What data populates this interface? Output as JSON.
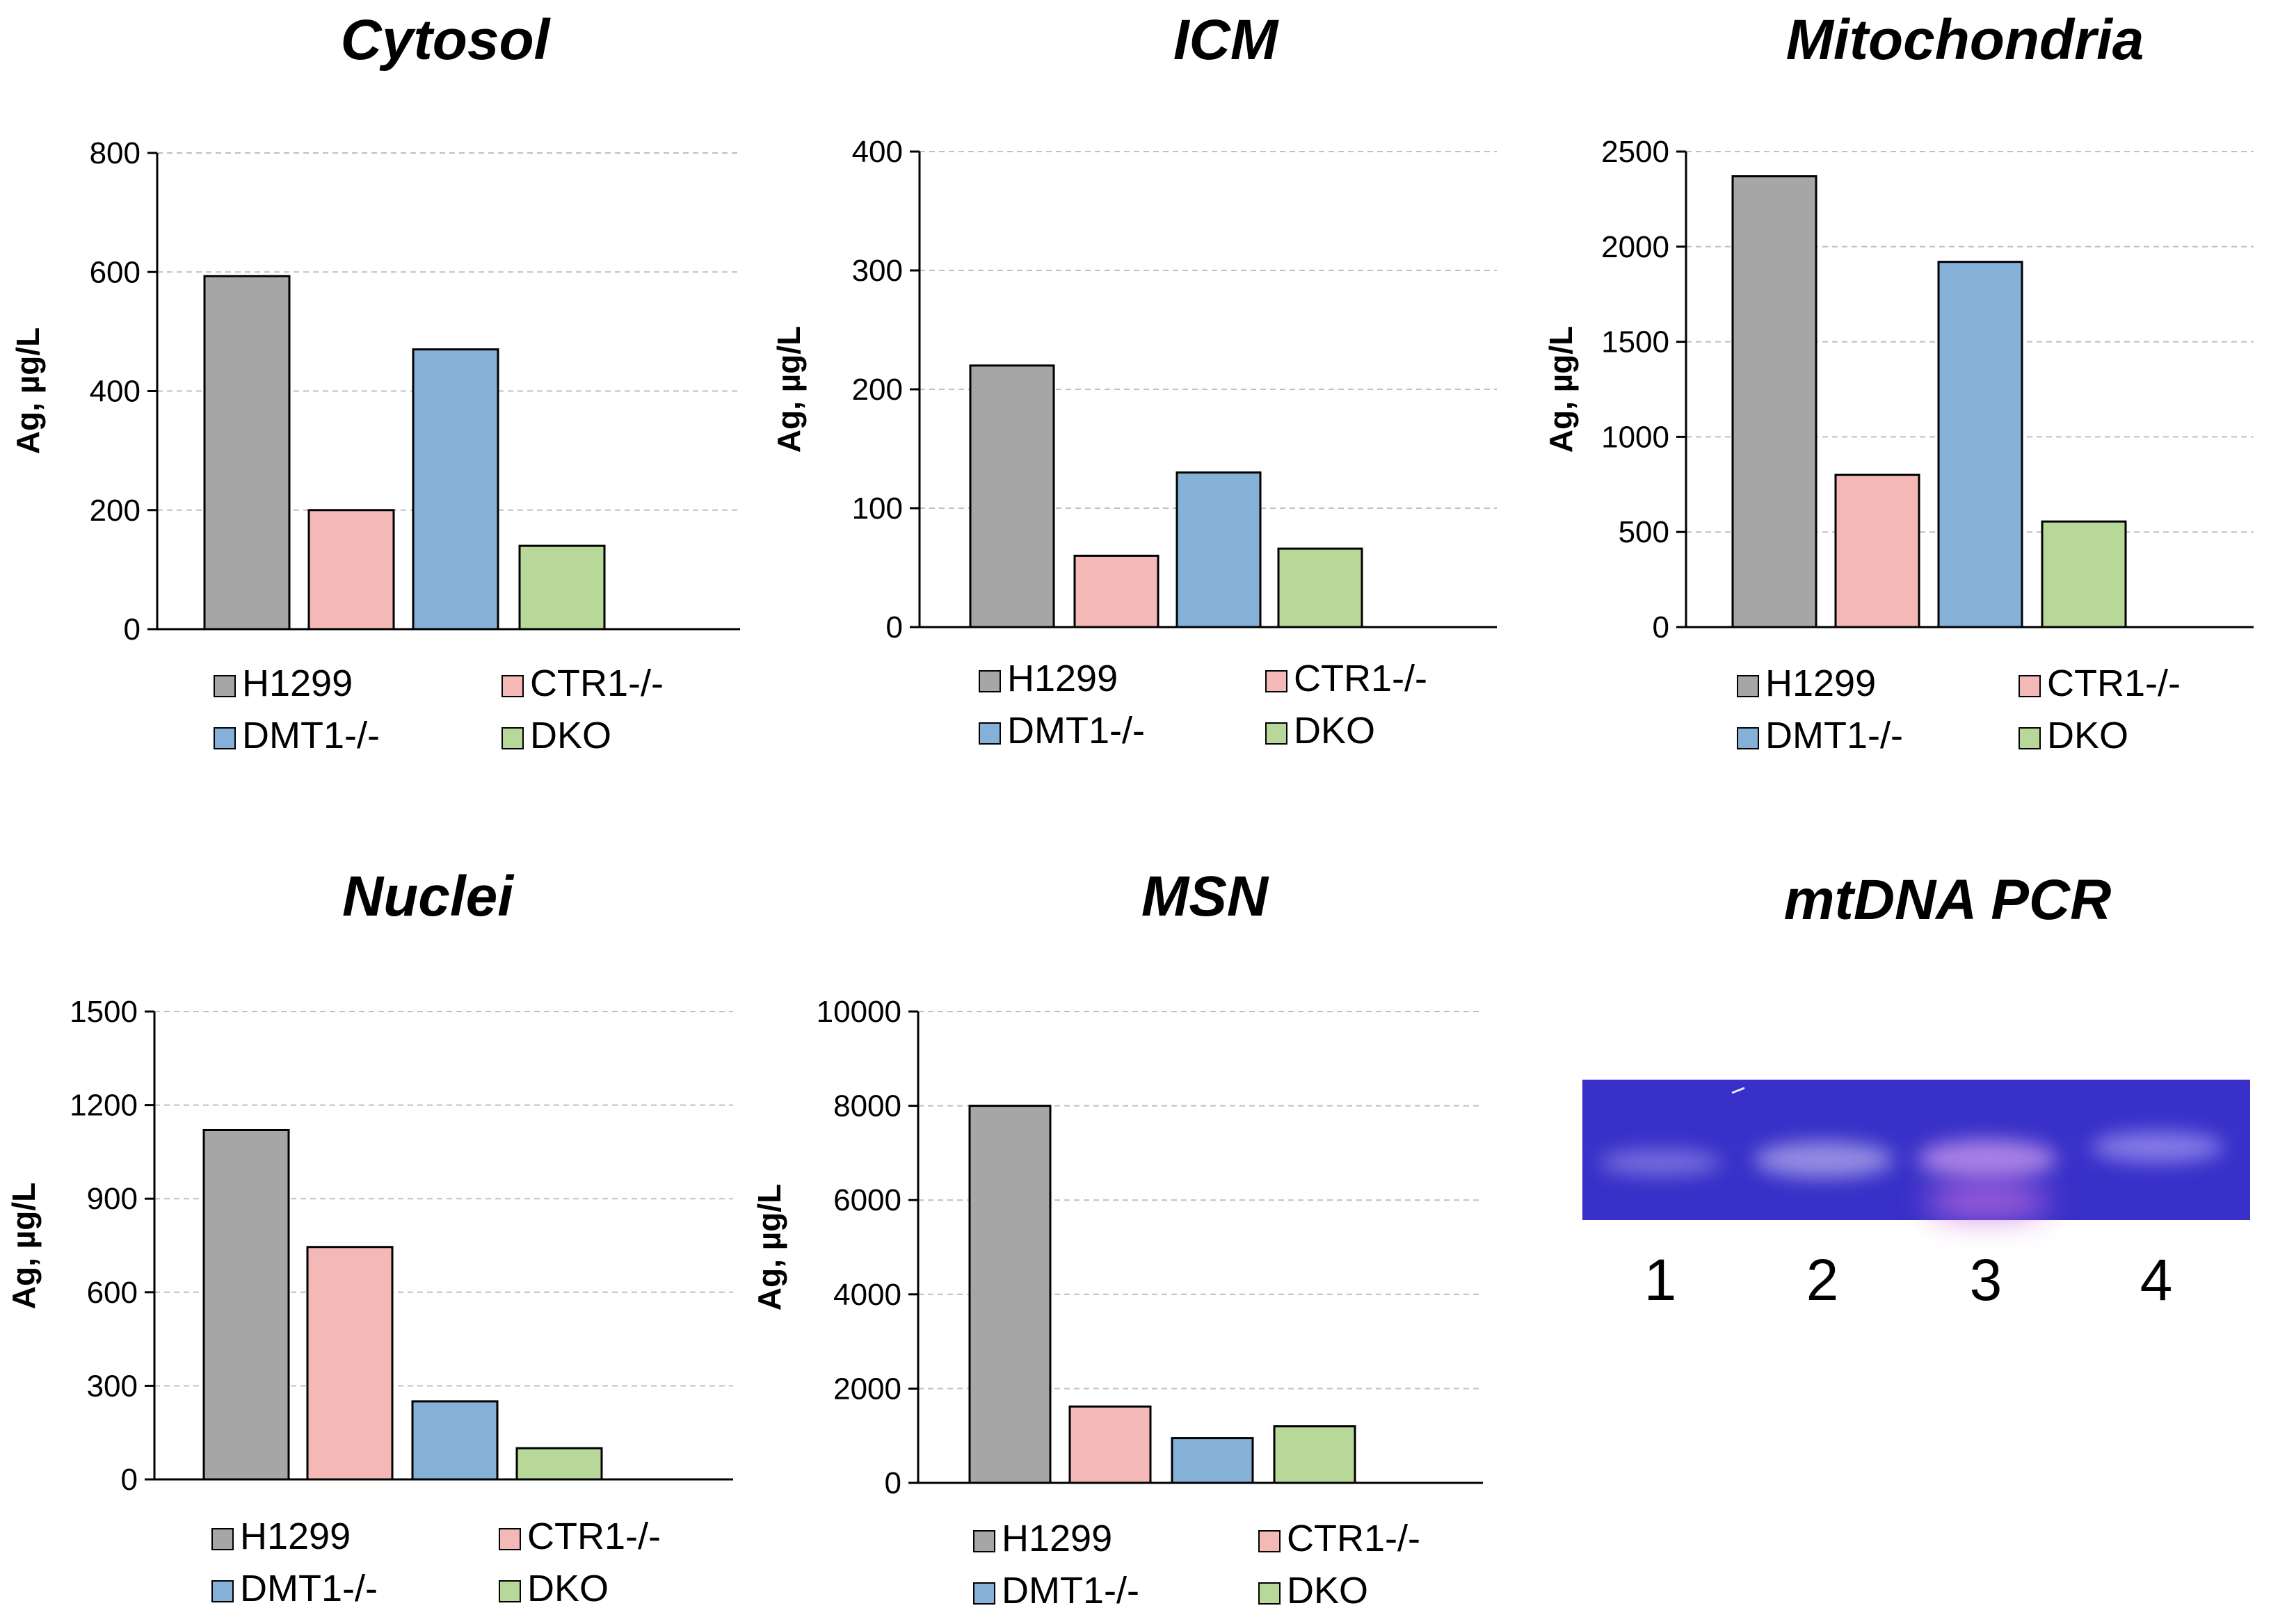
{
  "colors": {
    "H1299": "#a6a6a6",
    "CTR1-/-": "#f4b8b7",
    "DMT1-/-": "#85b1d8",
    "DKO": "#b8d89a",
    "axis": "#000000",
    "grid": "#bfbfbf",
    "gel_bg": "#3830c8",
    "gel_band": "#8f86e6",
    "gel_smear": "#c86fe0"
  },
  "chart_data": [
    {
      "type": "bar",
      "title": "Cytosol",
      "ylabel": "Ag, µg/L",
      "ylim": [
        0,
        800
      ],
      "yticks": [
        "0",
        "200",
        "400",
        "600",
        "800"
      ],
      "categories": [
        "H1299",
        "CTR1-/-",
        "DMT1-/-",
        "DKO"
      ],
      "values": [
        593,
        200,
        470,
        140
      ],
      "legend": [
        "H1299",
        "CTR1-/-",
        "DMT1-/-",
        "DKO"
      ],
      "grid": true
    },
    {
      "type": "bar",
      "title": "ICM",
      "ylabel": "Ag, µg/L",
      "ylim": [
        0,
        400
      ],
      "yticks": [
        "0",
        "100",
        "200",
        "300",
        "400"
      ],
      "categories": [
        "H1299",
        "CTR1-/-",
        "DMT1-/-",
        "DKO"
      ],
      "values": [
        220,
        60,
        130,
        66
      ],
      "legend": [
        "H1299",
        "CTR1-/-",
        "DMT1-/-",
        "DKO"
      ],
      "grid": true
    },
    {
      "type": "bar",
      "title": "Mitochondria",
      "ylabel": "Ag, µg/L",
      "ylim": [
        0,
        2500
      ],
      "yticks": [
        "0",
        "500",
        "1000",
        "1500",
        "2000",
        "2500"
      ],
      "categories": [
        "H1299",
        "CTR1-/-",
        "DMT1-/-",
        "DKO"
      ],
      "values": [
        2370,
        800,
        1920,
        555
      ],
      "legend": [
        "H1299",
        "CTR1-/-",
        "DMT1-/-",
        "DKO"
      ],
      "grid": true
    },
    {
      "type": "bar",
      "title": "Nuclei",
      "ylabel": "Ag, µg/L",
      "ylim": [
        0,
        1500
      ],
      "yticks": [
        "0",
        "300",
        "600",
        "900",
        "1200",
        "1500"
      ],
      "categories": [
        "H1299",
        "CTR1-/-",
        "DMT1-/-",
        "DKO"
      ],
      "values": [
        1120,
        745,
        250,
        100
      ],
      "legend": [
        "H1299",
        "CTR1-/-",
        "DMT1-/-",
        "DKO"
      ],
      "grid": true
    },
    {
      "type": "bar",
      "title": "MSN",
      "ylabel": "Ag, µg/L",
      "ylim": [
        0,
        10000
      ],
      "yticks": [
        "0",
        "2000",
        "4000",
        "6000",
        "8000",
        "10000"
      ],
      "categories": [
        "H1299",
        "CTR1-/-",
        "DMT1-/-",
        "DKO"
      ],
      "values": [
        8000,
        1620,
        950,
        1200
      ],
      "legend": [
        "H1299",
        "CTR1-/-",
        "DMT1-/-",
        "DKO"
      ],
      "grid": true
    }
  ],
  "gel": {
    "title": "mtDNA PCR",
    "lanes": [
      "1",
      "2",
      "3",
      "4"
    ]
  }
}
